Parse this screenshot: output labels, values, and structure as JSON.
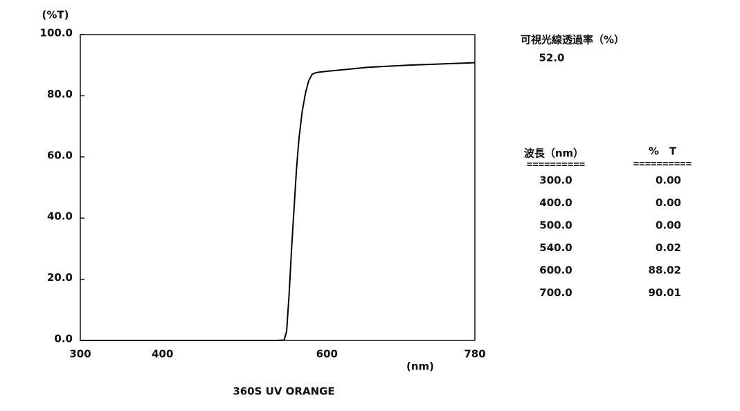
{
  "chart_data": {
    "type": "line",
    "title": "360S UV ORANGE",
    "y_label": "(%T)",
    "x_label": "(nm)",
    "x": [
      300,
      400,
      500,
      540,
      548,
      551,
      554,
      557,
      560,
      563,
      566,
      570,
      574,
      578,
      582,
      586,
      590,
      600,
      650,
      700,
      780
    ],
    "values": [
      0,
      0,
      0,
      0.02,
      0.1,
      3,
      15,
      30,
      43,
      56,
      66,
      75,
      81,
      85,
      87,
      87.5,
      87.7,
      88.02,
      89.3,
      90.01,
      90.8
    ],
    "color": "#000000",
    "xlim": [
      300,
      780
    ],
    "xticks": [
      300,
      400,
      600,
      780
    ],
    "ylim": [
      0,
      100
    ],
    "yticks": [
      {
        "value": 0,
        "label": "0.0"
      },
      {
        "value": 20,
        "label": "20.0"
      },
      {
        "value": 40,
        "label": "40.0"
      },
      {
        "value": 60,
        "label": "60.0"
      },
      {
        "value": 80,
        "label": "80.0"
      },
      {
        "value": 100,
        "label": "100.0"
      }
    ]
  },
  "summary": {
    "label": "可視光線透過率（%）",
    "value": "52.0"
  },
  "table": {
    "headers": [
      "波長（nm）",
      "%　T"
    ],
    "separators": [
      "==========",
      "=========="
    ],
    "rows": [
      [
        "300.0",
        "0.00"
      ],
      [
        "400.0",
        "0.00"
      ],
      [
        "500.0",
        "0.00"
      ],
      [
        "540.0",
        "0.02"
      ],
      [
        "600.0",
        "88.02"
      ],
      [
        "700.0",
        "90.01"
      ]
    ]
  }
}
